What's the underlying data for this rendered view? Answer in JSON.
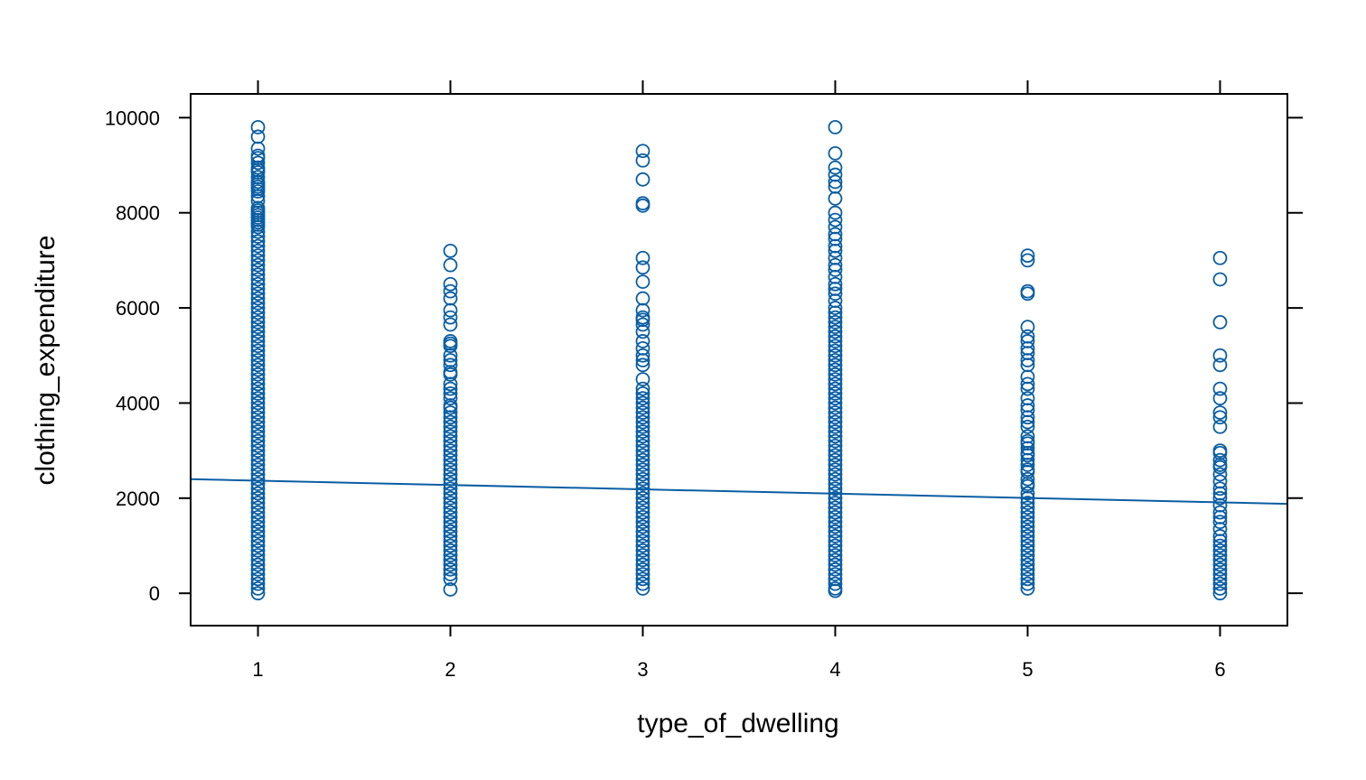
{
  "chart_data": {
    "type": "scatter",
    "title": "",
    "xlabel": "type_of_dwelling",
    "ylabel": "clothing_expenditure",
    "x_ticks": [
      1,
      2,
      3,
      4,
      5,
      6
    ],
    "y_ticks": [
      0,
      2000,
      4000,
      6000,
      8000,
      10000
    ],
    "xlim": [
      0.65,
      6.35
    ],
    "ylim": [
      -680,
      10500
    ],
    "grid": false,
    "color": "#0a5ea3",
    "series": [
      {
        "x": 1,
        "values": [
          9800,
          9600,
          9350,
          9200,
          9150,
          9050,
          8950,
          8900,
          8850,
          8750,
          8650,
          8600,
          8550,
          8500,
          8450,
          8350,
          8250,
          8100,
          8050,
          8000,
          7950,
          7900,
          7850,
          7800,
          7750,
          7700,
          7600,
          7500,
          7400,
          7300,
          7200,
          7100,
          7000,
          6900,
          6800,
          6700,
          6600,
          6500,
          6400,
          6300,
          6200,
          6100,
          6000,
          5900,
          5800,
          5700,
          5600,
          5500,
          5400,
          5300,
          5200,
          5100,
          5000,
          4900,
          4800,
          4700,
          4600,
          4500,
          4400,
          4300,
          4200,
          4100,
          4000,
          3900,
          3800,
          3700,
          3600,
          3500,
          3400,
          3300,
          3200,
          3100,
          3000,
          2900,
          2800,
          2700,
          2600,
          2500,
          2400,
          2300,
          2200,
          2100,
          2000,
          1900,
          1800,
          1700,
          1600,
          1500,
          1400,
          1300,
          1200,
          1100,
          1000,
          900,
          800,
          700,
          600,
          500,
          400,
          300,
          200,
          100,
          0
        ]
      },
      {
        "x": 2,
        "values": [
          7200,
          6900,
          6500,
          6350,
          6200,
          5950,
          5800,
          5650,
          5300,
          5250,
          5200,
          5000,
          4900,
          4800,
          4650,
          4600,
          4400,
          4300,
          4200,
          4100,
          3950,
          3900,
          3800,
          3700,
          3600,
          3500,
          3400,
          3300,
          3200,
          3100,
          3000,
          2900,
          2800,
          2700,
          2600,
          2500,
          2400,
          2300,
          2200,
          2100,
          2000,
          1900,
          1800,
          1700,
          1600,
          1500,
          1400,
          1300,
          1200,
          1100,
          1000,
          900,
          800,
          700,
          600,
          500,
          400,
          300,
          80
        ]
      },
      {
        "x": 3,
        "values": [
          9300,
          9100,
          8700,
          8200,
          8150,
          7050,
          6850,
          6550,
          6200,
          5950,
          5800,
          5750,
          5650,
          5500,
          5300,
          5150,
          5000,
          4900,
          4800,
          4500,
          4300,
          4200,
          4100,
          4000,
          3900,
          3800,
          3700,
          3600,
          3500,
          3400,
          3300,
          3200,
          3100,
          3000,
          2900,
          2800,
          2700,
          2600,
          2500,
          2400,
          2300,
          2200,
          2100,
          2000,
          1900,
          1800,
          1700,
          1600,
          1500,
          1400,
          1300,
          1200,
          1100,
          1000,
          900,
          800,
          700,
          600,
          500,
          400,
          300,
          200,
          100
        ]
      },
      {
        "x": 4,
        "values": [
          9800,
          9250,
          8950,
          8800,
          8650,
          8550,
          8300,
          8000,
          7850,
          7700,
          7550,
          7450,
          7300,
          7200,
          7050,
          6900,
          6800,
          6650,
          6500,
          6400,
          6300,
          6150,
          6000,
          5900,
          5800,
          5700,
          5600,
          5500,
          5400,
          5300,
          5200,
          5100,
          5000,
          4900,
          4800,
          4700,
          4600,
          4500,
          4400,
          4300,
          4200,
          4100,
          4000,
          3900,
          3800,
          3700,
          3600,
          3500,
          3400,
          3300,
          3200,
          3100,
          3000,
          2900,
          2800,
          2700,
          2600,
          2500,
          2400,
          2300,
          2200,
          2100,
          2000,
          1900,
          1800,
          1700,
          1600,
          1500,
          1400,
          1300,
          1200,
          1100,
          1000,
          900,
          800,
          700,
          600,
          500,
          400,
          300,
          200,
          100,
          50
        ]
      },
      {
        "x": 5,
        "values": [
          7100,
          7000,
          6350,
          6300,
          5600,
          5400,
          5300,
          5150,
          5050,
          4900,
          4800,
          4550,
          4400,
          4300,
          4100,
          3950,
          3850,
          3700,
          3600,
          3500,
          3300,
          3200,
          3150,
          3050,
          2950,
          2900,
          2800,
          2700,
          2600,
          2550,
          2400,
          2300,
          2250,
          2100,
          2000,
          1900,
          1800,
          1700,
          1600,
          1500,
          1400,
          1300,
          1200,
          1100,
          1000,
          900,
          800,
          700,
          600,
          500,
          400,
          300,
          200,
          100
        ]
      },
      {
        "x": 6,
        "values": [
          7050,
          6600,
          5700,
          5000,
          4800,
          4300,
          4100,
          3800,
          3700,
          3500,
          3000,
          2950,
          2800,
          2700,
          2650,
          2500,
          2350,
          2200,
          2100,
          2000,
          1850,
          1700,
          1600,
          1500,
          1350,
          1200,
          1100,
          1000,
          900,
          800,
          700,
          600,
          500,
          400,
          300,
          200,
          100,
          0
        ]
      }
    ],
    "regression_line": {
      "x": [
        0.65,
        6.35
      ],
      "y": [
        2400,
        1880
      ]
    }
  }
}
